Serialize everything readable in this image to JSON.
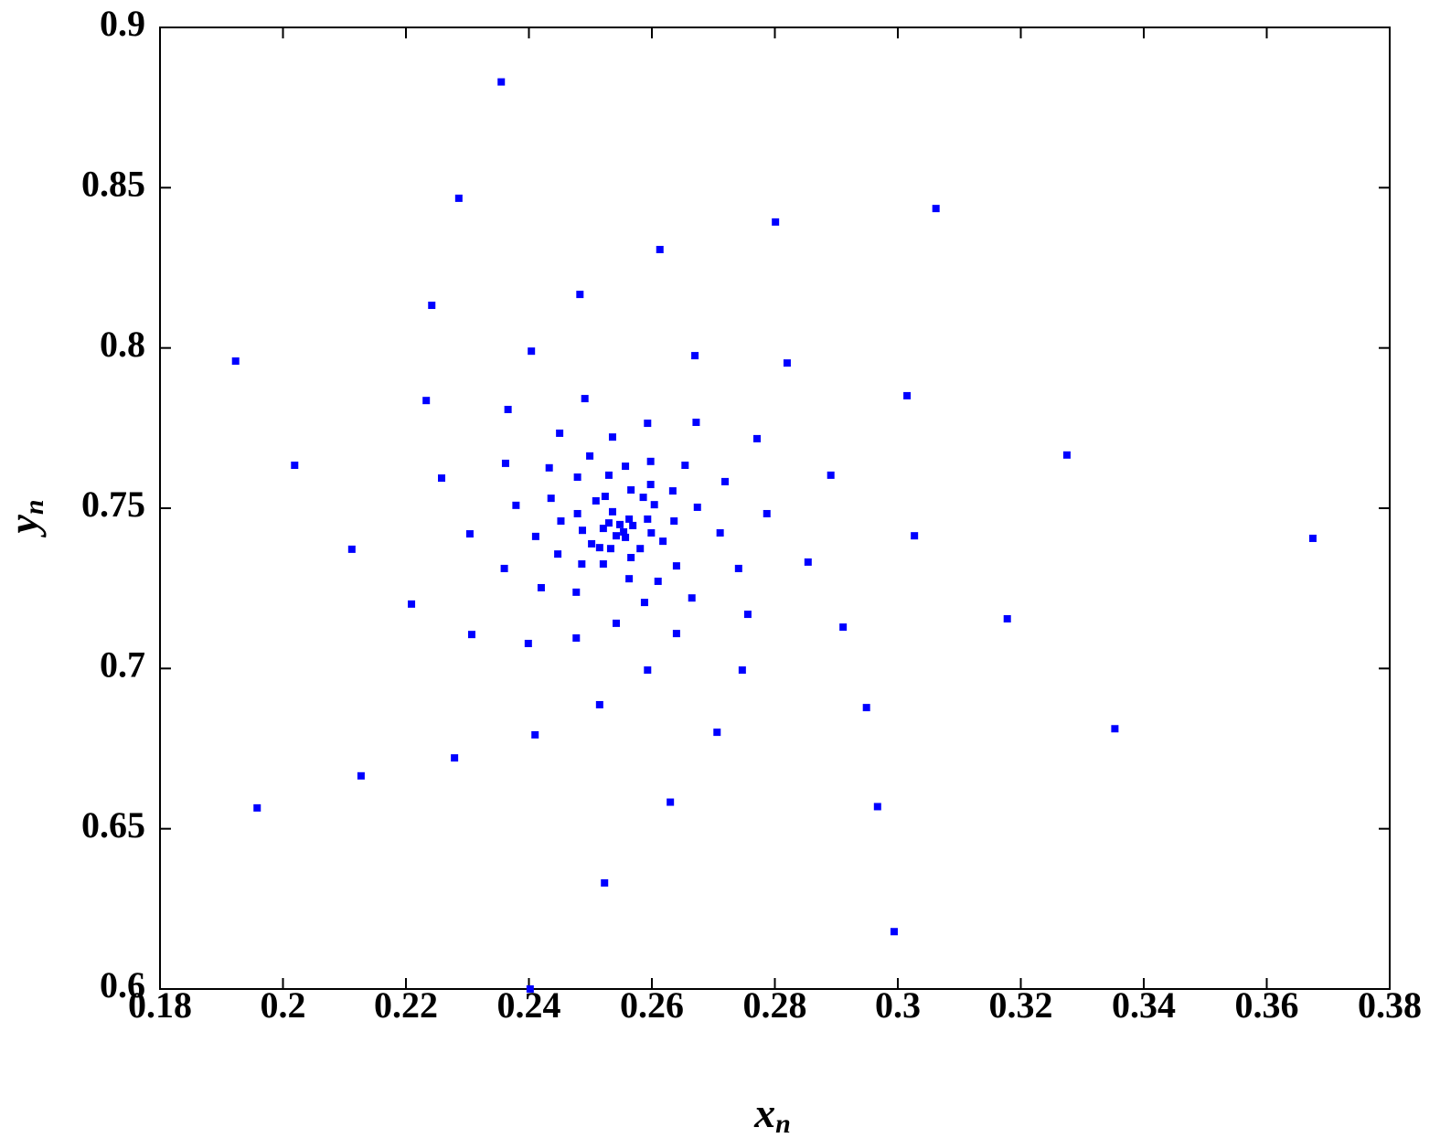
{
  "chart_data": {
    "type": "scatter",
    "xlabel": {
      "base": "x",
      "subscript": "n"
    },
    "ylabel": {
      "base": "y",
      "subscript": "n"
    },
    "color": "#0000ff",
    "xlim": [
      0.18,
      0.38
    ],
    "xticks": [
      0.18,
      0.2,
      0.22,
      0.24,
      0.26,
      0.28,
      0.3,
      0.32,
      0.34,
      0.36,
      0.38
    ],
    "ylim": [
      0.6,
      0.9
    ],
    "yticks": [
      0.6,
      0.65,
      0.7,
      0.75,
      0.8,
      0.85,
      0.9
    ],
    "x": [
      0.2355,
      0.2286,
      0.2801,
      0.3062,
      0.2613,
      0.2242,
      0.2483,
      0.1923,
      0.2404,
      0.267,
      0.282,
      0.2233,
      0.2491,
      0.2366,
      0.3015,
      0.245,
      0.2536,
      0.2593,
      0.2672,
      0.2771,
      0.2019,
      0.2362,
      0.2258,
      0.3275,
      0.2891,
      0.2499,
      0.2433,
      0.2598,
      0.2654,
      0.2719,
      0.2112,
      0.2304,
      0.2379,
      0.2209,
      0.2411,
      0.236,
      0.2447,
      0.242,
      0.2307,
      0.2399,
      0.2477,
      0.2542,
      0.2477,
      0.2588,
      0.264,
      0.2665,
      0.261,
      0.2711,
      0.2741,
      0.2756,
      0.2674,
      0.2787,
      0.2854,
      0.3027,
      0.3675,
      0.3178,
      0.2911,
      0.2747,
      0.2593,
      0.2515,
      0.2949,
      0.2706,
      0.241,
      0.2279,
      0.3353,
      0.2127,
      0.1958,
      0.263,
      0.2967,
      0.2523,
      0.2994,
      0.2402,
      0.2436,
      0.2452,
      0.2479,
      0.2479,
      0.253,
      0.2557,
      0.2634,
      0.2636,
      0.2618,
      0.264,
      0.2563,
      0.2521,
      0.2486,
      0.2502,
      0.2515,
      0.2566,
      0.2598,
      0.2604,
      0.2581,
      0.2599,
      0.2509,
      0.2524,
      0.2586,
      0.2593,
      0.2533,
      0.2566,
      0.2487,
      0.2536,
      0.2548,
      0.2554,
      0.2542,
      0.2563,
      0.253,
      0.2557,
      0.2521,
      0.2569
    ],
    "y": [
      0.883,
      0.8467,
      0.8393,
      0.8435,
      0.8307,
      0.8133,
      0.8167,
      0.7959,
      0.799,
      0.7976,
      0.7953,
      0.7836,
      0.7842,
      0.7808,
      0.7851,
      0.7734,
      0.7722,
      0.7765,
      0.7768,
      0.7717,
      0.7634,
      0.764,
      0.7594,
      0.7666,
      0.7603,
      0.7663,
      0.7626,
      0.7646,
      0.7634,
      0.7583,
      0.7372,
      0.742,
      0.7509,
      0.7201,
      0.7412,
      0.7312,
      0.7357,
      0.7252,
      0.7106,
      0.7078,
      0.7095,
      0.7141,
      0.7238,
      0.7206,
      0.7109,
      0.722,
      0.7272,
      0.7423,
      0.7312,
      0.7169,
      0.7503,
      0.7483,
      0.7332,
      0.7414,
      0.7406,
      0.7155,
      0.7129,
      0.6995,
      0.6995,
      0.6887,
      0.6878,
      0.6801,
      0.6793,
      0.6721,
      0.6812,
      0.6665,
      0.6565,
      0.6583,
      0.6569,
      0.6331,
      0.6179,
      0.6,
      0.7531,
      0.746,
      0.7483,
      0.7597,
      0.7603,
      0.7631,
      0.7554,
      0.746,
      0.7397,
      0.732,
      0.728,
      0.7326,
      0.7326,
      0.7389,
      0.7377,
      0.7557,
      0.7574,
      0.7511,
      0.7374,
      0.7423,
      0.7523,
      0.7537,
      0.7534,
      0.7466,
      0.7374,
      0.7346,
      0.7431,
      0.7489,
      0.7449,
      0.7426,
      0.7414,
      0.7466,
      0.7454,
      0.7409,
      0.7437,
      0.7446
    ]
  }
}
